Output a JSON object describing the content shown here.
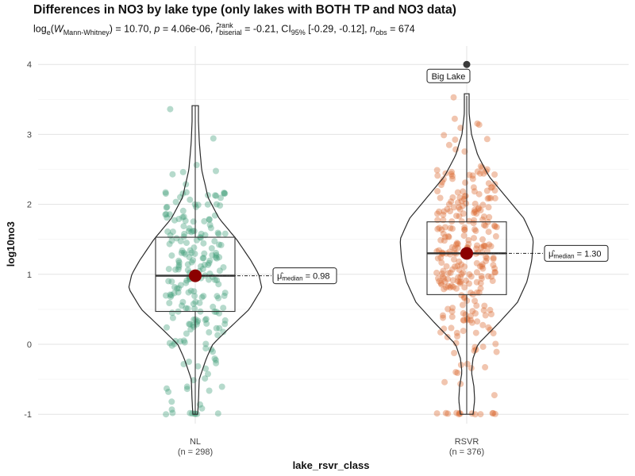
{
  "chart_data": {
    "type": "violin",
    "title": "Differences in NO3 by lake type (only lakes with BOTH TP and NO3 data)",
    "subtitle": {
      "stat_label": "log",
      "stat_base": "e",
      "stat_symbol": "W",
      "stat_sub": "Mann-Whitney",
      "stat_value": "= 10.70,",
      "p_label": "p",
      "p_value": "= 4.06e-06,",
      "effect_symbol": "r̂",
      "effect_sup": "rank",
      "effect_sub": "biserial",
      "effect_value": "= -0.21,",
      "ci_label": "CI",
      "ci_sub": "95%",
      "ci_value": "[-0.29, -0.12],",
      "n_label": "n",
      "n_sub": "obs",
      "n_value": "= 674"
    },
    "xlabel": "lake_rsvr_class",
    "ylabel": "log10no3",
    "ylim": [
      -1.1,
      4.25
    ],
    "yticks": [
      "-1",
      "0",
      "1",
      "2",
      "3",
      "4"
    ],
    "grid": true,
    "categories": [
      "NL",
      "RSVR"
    ],
    "category_counts": [
      "(n = 298)",
      "(n = 376)"
    ],
    "groups": [
      {
        "name": "NL",
        "n": 298,
        "color": "#3f9e78",
        "median": 0.98,
        "q1": 0.47,
        "q3": 1.53,
        "whisker_low": -1.0,
        "whisker_high": 3.41,
        "median_label": "μ̂",
        "median_label_sub": "median",
        "median_label_value": "= 0.98",
        "outliers": []
      },
      {
        "name": "RSVR",
        "n": 376,
        "color": "#d9662e",
        "median": 1.3,
        "q1": 0.71,
        "q3": 1.75,
        "whisker_low": -1.0,
        "whisker_high": 3.55,
        "median_label": "μ̂",
        "median_label_sub": "median",
        "median_label_value": "= 1.30",
        "outliers": [
          {
            "value": 4.0,
            "label": "Big Lake"
          }
        ]
      }
    ]
  }
}
